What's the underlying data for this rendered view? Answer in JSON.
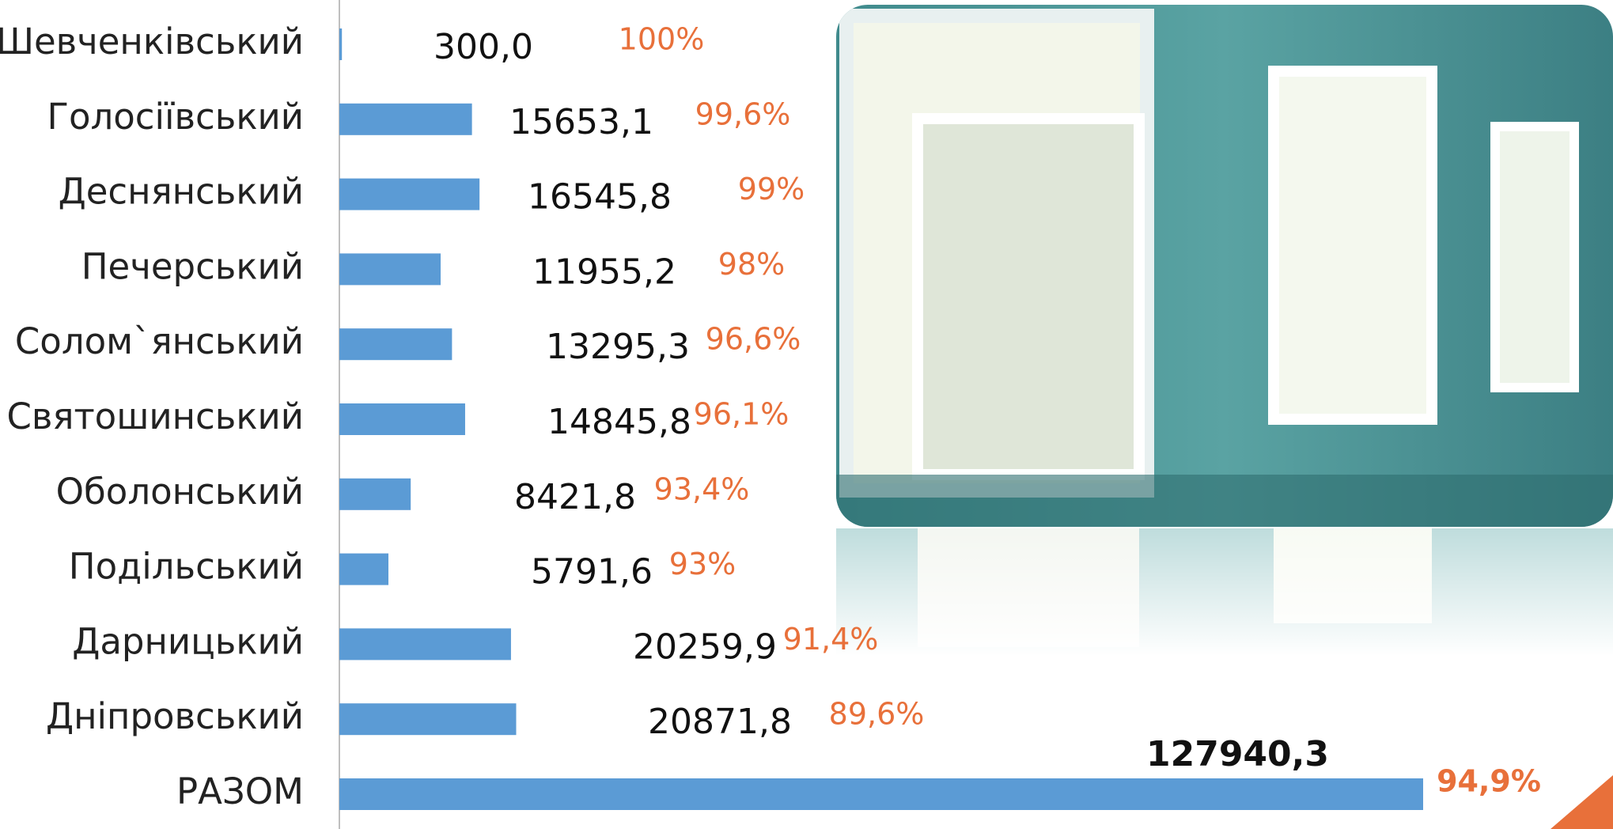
{
  "chart_data": {
    "type": "bar",
    "orientation": "horizontal",
    "color": "#5b9bd5",
    "percent_color": "#e8703a",
    "categories": [
      "Шевченківський",
      "Голосіївський",
      "Деснянський",
      "Печерський",
      "Солом`янський",
      "Святошинський",
      "Оболонський",
      "Подільський",
      "Дарницький",
      "Дніпровський",
      "РАЗОМ"
    ],
    "values": [
      300.0,
      15653.1,
      16545.8,
      11955.2,
      13295.3,
      14845.8,
      8421.8,
      5791.6,
      20259.9,
      20871.8,
      127940.3
    ],
    "value_labels": [
      "300,0",
      "15653,1",
      "16545,8",
      "11955,2",
      "13295,3",
      "14845,8",
      "8421,8",
      "5791,6",
      "20259,9",
      "20871,8",
      "127940,3"
    ],
    "percent_values": [
      100,
      99.6,
      99,
      98,
      96.6,
      96.1,
      93.4,
      93,
      91.4,
      89.6,
      94.9
    ],
    "percent_labels": [
      "100%",
      "99,6%",
      "99%",
      "98%",
      "96,6%",
      "96,1%",
      "93,4%",
      "93%",
      "91,4%",
      "89,6%",
      "94,9%"
    ]
  }
}
